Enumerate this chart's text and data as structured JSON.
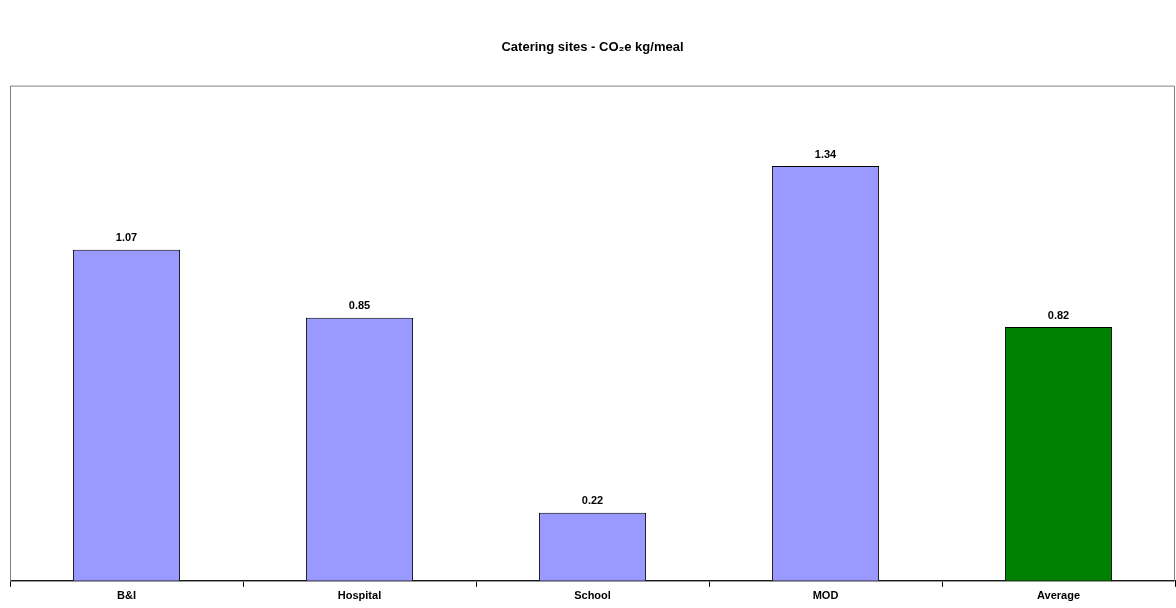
{
  "chart_data": {
    "type": "bar",
    "title": "Catering sites - CO₂e kg/meal",
    "categories": [
      "B&I",
      "Hospital",
      "School",
      "MOD",
      "Average"
    ],
    "values": [
      1.07,
      0.85,
      0.22,
      1.34,
      0.82
    ],
    "colors": [
      "#9999ff",
      "#9999ff",
      "#9999ff",
      "#9999ff",
      "#008000"
    ],
    "data_labels": true,
    "grid": false,
    "legend": false
  }
}
